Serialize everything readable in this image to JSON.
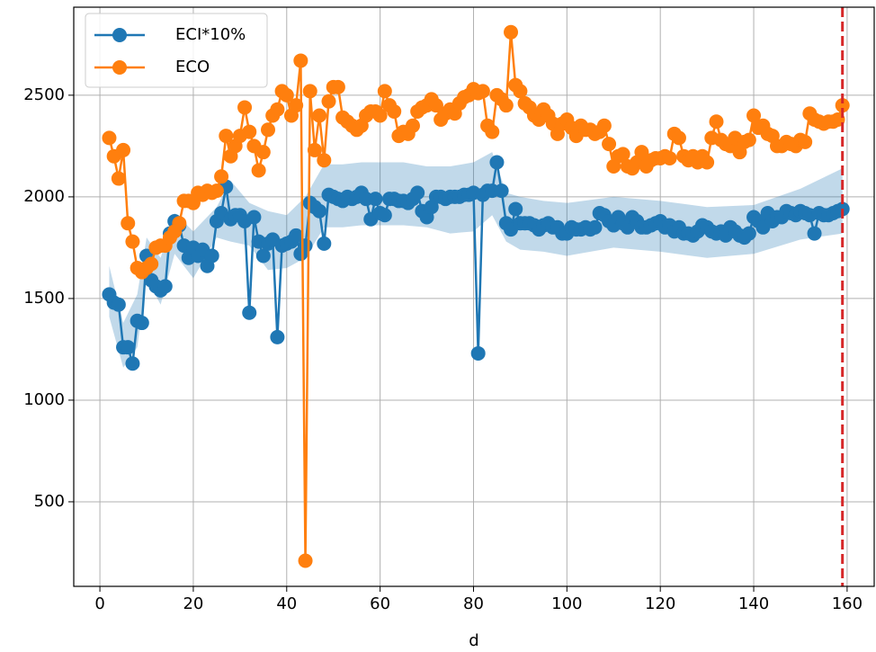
{
  "chart_data": {
    "type": "line",
    "xlabel": "d",
    "xlim": [
      -5.6,
      165.8
    ],
    "ylim": [
      84,
      2933
    ],
    "xticks": [
      0,
      20,
      40,
      60,
      80,
      100,
      120,
      140,
      160
    ],
    "yticks": [
      500,
      1000,
      1500,
      2000,
      2500
    ],
    "grid": true,
    "legend": "upper left",
    "x": [
      2,
      3,
      4,
      5,
      6,
      7,
      8,
      9,
      10,
      11,
      12,
      13,
      14,
      15,
      16,
      17,
      18,
      19,
      20,
      21,
      22,
      23,
      24,
      25,
      26,
      27,
      28,
      29,
      30,
      31,
      32,
      33,
      34,
      35,
      36,
      37,
      38,
      39,
      40,
      41,
      42,
      43,
      44,
      45,
      46,
      47,
      48,
      49,
      50,
      51,
      52,
      53,
      54,
      55,
      56,
      57,
      58,
      59,
      60,
      61,
      62,
      63,
      64,
      65,
      66,
      67,
      68,
      69,
      70,
      71,
      72,
      73,
      74,
      75,
      76,
      77,
      78,
      79,
      80,
      81,
      82,
      83,
      84,
      85,
      86,
      87,
      88,
      89,
      90,
      91,
      92,
      93,
      94,
      95,
      96,
      97,
      98,
      99,
      100,
      101,
      102,
      103,
      104,
      105,
      106,
      107,
      108,
      109,
      110,
      111,
      112,
      113,
      114,
      115,
      116,
      117,
      118,
      119,
      120,
      121,
      122,
      123,
      124,
      125,
      126,
      127,
      128,
      129,
      130,
      131,
      132,
      133,
      134,
      135,
      136,
      137,
      138,
      139,
      140,
      141,
      142,
      143,
      144,
      145,
      146,
      147,
      148,
      149,
      150,
      151,
      152,
      153,
      154,
      155,
      156,
      157,
      158,
      159
    ],
    "series": [
      {
        "name": "ECI*10%",
        "color": "#1f77b4",
        "values": [
          1520,
          1480,
          1470,
          1260,
          1260,
          1180,
          1390,
          1380,
          1710,
          1590,
          1560,
          1540,
          1560,
          1820,
          1880,
          1860,
          1760,
          1700,
          1750,
          1710,
          1740,
          1660,
          1710,
          1880,
          1920,
          2050,
          1890,
          1910,
          1910,
          1880,
          1430,
          1900,
          1780,
          1710,
          1770,
          1790,
          1310,
          1760,
          1770,
          1780,
          1810,
          1720,
          1760,
          1970,
          1950,
          1930,
          1770,
          2010,
          2000,
          1990,
          1980,
          2000,
          1990,
          2000,
          2020,
          1990,
          1890,
          1990,
          1920,
          1910,
          1990,
          1990,
          1980,
          1980,
          1970,
          1990,
          2020,
          1930,
          1900,
          1950,
          2000,
          2000,
          1990,
          2000,
          2000,
          2000,
          2010,
          2010,
          2020,
          1230,
          2010,
          2030,
          2030,
          2170,
          2030,
          1870,
          1840,
          1940,
          1870,
          1870,
          1870,
          1860,
          1840,
          1860,
          1870,
          1850,
          1850,
          1820,
          1820,
          1850,
          1840,
          1840,
          1850,
          1840,
          1850,
          1920,
          1910,
          1880,
          1860,
          1900,
          1870,
          1850,
          1900,
          1880,
          1850,
          1850,
          1860,
          1870,
          1880,
          1850,
          1860,
          1830,
          1850,
          1820,
          1820,
          1810,
          1830,
          1860,
          1850,
          1830,
          1820,
          1830,
          1810,
          1850,
          1830,
          1810,
          1800,
          1820,
          1900,
          1880,
          1850,
          1920,
          1880,
          1900,
          1900,
          1930,
          1920,
          1910,
          1930,
          1920,
          1910,
          1820,
          1920,
          1910,
          1910,
          1920,
          1930,
          1940
        ]
      },
      {
        "name": "ECO",
        "color": "#ff7f0e",
        "values": [
          2290,
          2200,
          2090,
          2230,
          1870,
          1780,
          1650,
          1630,
          1650,
          1670,
          1750,
          1760,
          1760,
          1800,
          1830,
          1870,
          1980,
          1980,
          1970,
          2020,
          2010,
          2030,
          2020,
          2030,
          2100,
          2300,
          2200,
          2250,
          2300,
          2440,
          2320,
          2250,
          2130,
          2220,
          2330,
          2400,
          2430,
          2520,
          2500,
          2400,
          2450,
          2670,
          210,
          2520,
          2230,
          2400,
          2180,
          2470,
          2540,
          2540,
          2390,
          2370,
          2350,
          2330,
          2350,
          2400,
          2420,
          2420,
          2400,
          2520,
          2450,
          2420,
          2300,
          2320,
          2310,
          2350,
          2420,
          2440,
          2450,
          2480,
          2450,
          2380,
          2410,
          2430,
          2410,
          2460,
          2490,
          2500,
          2530,
          2510,
          2520,
          2350,
          2320,
          2500,
          2480,
          2450,
          2810,
          2550,
          2520,
          2460,
          2440,
          2400,
          2380,
          2430,
          2400,
          2360,
          2310,
          2360,
          2380,
          2340,
          2300,
          2350,
          2330,
          2330,
          2310,
          2320,
          2350,
          2260,
          2150,
          2200,
          2210,
          2150,
          2140,
          2170,
          2220,
          2150,
          2180,
          2190,
          2190,
          2200,
          2190,
          2310,
          2290,
          2200,
          2180,
          2200,
          2170,
          2200,
          2170,
          2290,
          2370,
          2280,
          2260,
          2250,
          2290,
          2220,
          2270,
          2280,
          2400,
          2340,
          2350,
          2310,
          2300,
          2250,
          2250,
          2270,
          2260,
          2250,
          2280,
          2270,
          2410,
          2380,
          2370,
          2360,
          2370,
          2370,
          2380,
          2450
        ]
      }
    ],
    "band": {
      "color": "#1f77b4",
      "x": [
        2,
        5,
        8,
        10,
        13,
        16,
        20,
        25,
        28,
        32,
        36,
        40,
        44,
        48,
        52,
        56,
        60,
        65,
        70,
        75,
        80,
        84,
        87,
        90,
        95,
        100,
        110,
        120,
        130,
        140,
        150,
        159
      ],
      "lower": [
        1410,
        1160,
        1260,
        1600,
        1470,
        1720,
        1600,
        1800,
        1780,
        1760,
        1640,
        1650,
        1700,
        1850,
        1850,
        1860,
        1860,
        1860,
        1850,
        1820,
        1830,
        1910,
        1780,
        1740,
        1730,
        1710,
        1750,
        1730,
        1700,
        1720,
        1790,
        1820
      ],
      "upper": [
        1660,
        1380,
        1520,
        1800,
        1700,
        1920,
        1830,
        1950,
        2080,
        1970,
        1930,
        1910,
        2000,
        2160,
        2160,
        2170,
        2170,
        2170,
        2150,
        2150,
        2170,
        2220,
        2020,
        2000,
        1980,
        1970,
        2000,
        1980,
        1950,
        1960,
        2040,
        2140
      ]
    },
    "vline": {
      "x": 159,
      "color": "#d62728"
    }
  }
}
